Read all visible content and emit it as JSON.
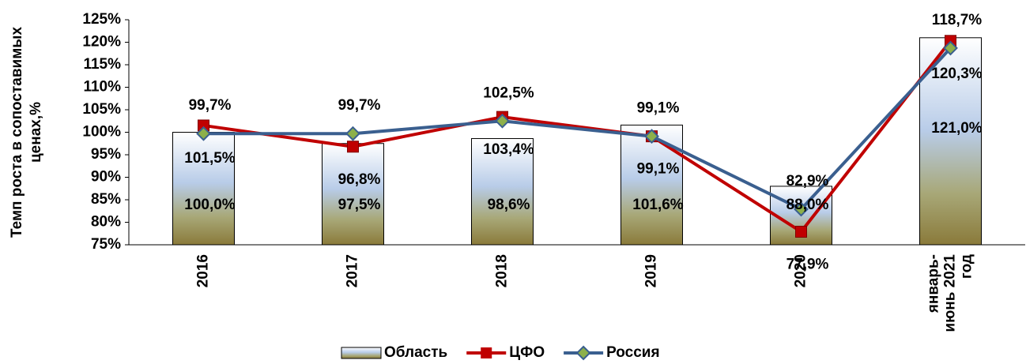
{
  "chart_data": {
    "type": "bar_line",
    "y_label": [
      "Темп роста в сопоставимых",
      "ценах,%"
    ],
    "categories": [
      "2016",
      "2017",
      "2018",
      "2019",
      "2020",
      "январь-\nиюнь 2021\nгод"
    ],
    "ylim": [
      75,
      125
    ],
    "yticks": [
      {
        "value": 75,
        "label": "75%"
      },
      {
        "value": 80,
        "label": "80%"
      },
      {
        "value": 85,
        "label": "85%"
      },
      {
        "value": 90,
        "label": "90%"
      },
      {
        "value": 95,
        "label": "95%"
      },
      {
        "value": 100,
        "label": "100%"
      },
      {
        "value": 105,
        "label": "105%"
      },
      {
        "value": 110,
        "label": "110%"
      },
      {
        "value": 115,
        "label": "115%"
      },
      {
        "value": 120,
        "label": "120%"
      },
      {
        "value": 125,
        "label": "125%"
      }
    ],
    "series": [
      {
        "name": "Область",
        "kind": "bar",
        "color": "#c9d8ee",
        "values": [
          100.0,
          97.5,
          98.6,
          101.6,
          88.0,
          121.0
        ],
        "value_labels": [
          "100,0%",
          "97,5%",
          "98,6%",
          "101,6%",
          "88,0%",
          "121,0%"
        ]
      },
      {
        "name": "ЦФО",
        "kind": "line",
        "marker": "square",
        "color": "#c00000",
        "values": [
          101.5,
          96.8,
          103.4,
          99.1,
          77.9,
          120.3
        ],
        "value_labels": [
          "101,5%",
          "96,8%",
          "103,4%",
          "99,1%",
          "77,9%",
          "120,3%"
        ]
      },
      {
        "name": "Россия",
        "kind": "line",
        "marker": "diamond",
        "color": "#3a5f8f",
        "values": [
          99.7,
          99.7,
          102.5,
          99.1,
          82.9,
          118.7
        ],
        "value_labels": [
          "99,7%",
          "99,7%",
          "102,5%",
          "99,1%",
          "82,9%",
          "118,7%"
        ]
      }
    ],
    "legend": "bottom"
  }
}
